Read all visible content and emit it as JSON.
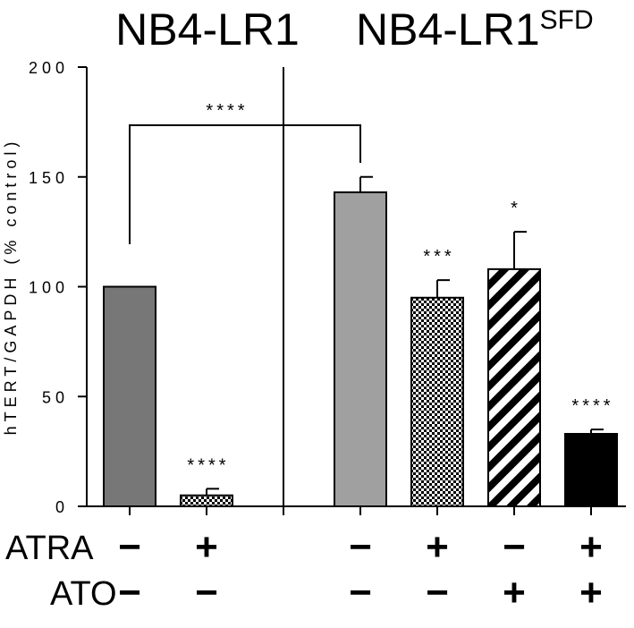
{
  "chart_data": {
    "type": "bar",
    "title": "",
    "ylabel": "hTERT/GAPDH (% control)",
    "xlabel": "",
    "ylim": [
      0,
      200
    ],
    "yticks": [
      "0",
      "50",
      "100",
      "150",
      "200"
    ],
    "groups": [
      {
        "name": "NB4-LR1",
        "sup": ""
      },
      {
        "name": "NB4-LR1",
        "sup": "SFD"
      }
    ],
    "bars": [
      {
        "group": 0,
        "atra": "−",
        "ato": "−",
        "value": 100,
        "err": 0,
        "sig": "",
        "fill": "#777777",
        "pattern": "solid-gray-dark"
      },
      {
        "group": 0,
        "atra": "+",
        "ato": "−",
        "value": 5,
        "err": 3,
        "sig": "****",
        "fill": "#ffffff",
        "pattern": "checker"
      },
      {
        "group": 1,
        "atra": "−",
        "ato": "−",
        "value": 143,
        "err": 7,
        "sig": "",
        "fill": "#a0a0a0",
        "pattern": "solid-gray-light"
      },
      {
        "group": 1,
        "atra": "+",
        "ato": "−",
        "value": 95,
        "err": 8,
        "sig": "***",
        "fill": "#ffffff",
        "pattern": "checker"
      },
      {
        "group": 1,
        "atra": "−",
        "ato": "+",
        "value": 108,
        "err": 17,
        "sig": "*",
        "fill": "#ffffff",
        "pattern": "diagonal-stripes"
      },
      {
        "group": 1,
        "atra": "+",
        "ato": "+",
        "value": 33,
        "err": 2,
        "sig": "****",
        "fill": "#000000",
        "pattern": "solid-black"
      }
    ],
    "comparison": {
      "from_bar": 0,
      "to_bar": 2,
      "sig": "****"
    },
    "row_labels": {
      "atra": "ATRA",
      "ato": "ATO"
    },
    "grid": false
  }
}
